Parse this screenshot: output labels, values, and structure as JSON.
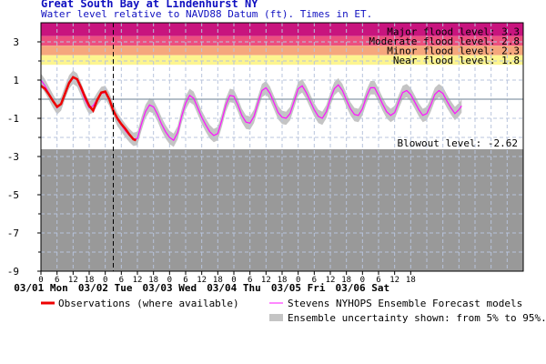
{
  "chart_data": {
    "type": "line",
    "title": "Great South Bay at Lindenhurst NY",
    "subtitle": "Water level relative to NAVD88 Datum (ft). Times in ET.",
    "xlabel": "",
    "ylabel": "",
    "x_unit": "hours since 03/01 Mon 00:00",
    "xlim": [
      0,
      180
    ],
    "ylim": [
      -9,
      4
    ],
    "y_ticks": [
      "-9",
      "-7",
      "-5",
      "-3",
      "-1",
      "1",
      "3"
    ],
    "y_tick_values": [
      -9,
      -7,
      -5,
      -3,
      -1,
      1,
      3
    ],
    "hour_ticks": [
      "0",
      "6",
      "12",
      "18",
      "0",
      "6",
      "12",
      "18",
      "0",
      "6",
      "12",
      "18",
      "0",
      "6",
      "12",
      "18",
      "0",
      "6",
      "12",
      "18",
      "0",
      "6",
      "12",
      "18"
    ],
    "day_labels": [
      "03/01 Mon",
      "03/02 Tue",
      "03/03 Wed",
      "03/04 Thu",
      "03/05 Fri",
      "03/06 Sat"
    ],
    "now_hour": 27,
    "grid": true,
    "flood_levels": [
      {
        "label": "Major flood level: 3.3",
        "value": 3.3,
        "color": "#c8147e"
      },
      {
        "label": "Moderate flood level: 2.8",
        "value": 2.8,
        "color": "#ec4f7f"
      },
      {
        "label": "Minor flood level: 2.3",
        "value": 2.3,
        "color": "#f5a77d"
      },
      {
        "label": "Near flood level: 1.8",
        "value": 1.8,
        "color": "#fdf58f"
      }
    ],
    "blowout": {
      "label": "Blowout level: -2.62",
      "value": -2.62,
      "color": "#999999"
    },
    "reference_line": 0.0,
    "series": [
      {
        "name": "Observations (where available)",
        "color": "#ee0000",
        "points": [
          [
            0,
            0.7
          ],
          [
            1.5,
            0.55
          ],
          [
            3,
            0.25
          ],
          [
            4.5,
            -0.1
          ],
          [
            6,
            -0.4
          ],
          [
            7.5,
            -0.25
          ],
          [
            9,
            0.3
          ],
          [
            10.5,
            0.85
          ],
          [
            12,
            1.15
          ],
          [
            13.5,
            1.05
          ],
          [
            15,
            0.6
          ],
          [
            16.5,
            0.1
          ],
          [
            18,
            -0.35
          ],
          [
            19.5,
            -0.6
          ],
          [
            21,
            -0.05
          ],
          [
            22.5,
            0.35
          ],
          [
            24,
            0.4
          ],
          [
            25.5,
            0.0
          ],
          [
            27,
            -0.6
          ],
          [
            28.5,
            -1.0
          ],
          [
            30,
            -1.3
          ],
          [
            31.5,
            -1.55
          ],
          [
            33,
            -1.85
          ],
          [
            34.5,
            -2.1
          ],
          [
            35.5,
            -2.15
          ]
        ]
      },
      {
        "name": "Stevens NYHOPS Ensemble Forecast models",
        "color": "#ff10ff",
        "points": [
          [
            0,
            1.0
          ],
          [
            1.5,
            0.7
          ],
          [
            3,
            0.3
          ],
          [
            4.5,
            -0.1
          ],
          [
            6,
            -0.45
          ],
          [
            7.5,
            -0.25
          ],
          [
            9,
            0.35
          ],
          [
            10.5,
            0.9
          ],
          [
            12,
            1.15
          ],
          [
            13.5,
            1.0
          ],
          [
            15,
            0.5
          ],
          [
            16.5,
            -0.05
          ],
          [
            18,
            -0.45
          ],
          [
            19.5,
            -0.35
          ],
          [
            21,
            0.0
          ],
          [
            22.5,
            0.3
          ],
          [
            24,
            0.35
          ],
          [
            25.5,
            0.0
          ],
          [
            27,
            -0.55
          ],
          [
            28.5,
            -1.05
          ],
          [
            30,
            -1.35
          ],
          [
            31.5,
            -1.65
          ],
          [
            33,
            -1.9
          ],
          [
            34.5,
            -2.1
          ],
          [
            36,
            -2.05
          ],
          [
            37.5,
            -1.3
          ],
          [
            39,
            -0.65
          ],
          [
            40.5,
            -0.3
          ],
          [
            42,
            -0.4
          ],
          [
            43.5,
            -0.8
          ],
          [
            45,
            -1.3
          ],
          [
            46.5,
            -1.7
          ],
          [
            48,
            -2.0
          ],
          [
            49.5,
            -2.15
          ],
          [
            51,
            -1.75
          ],
          [
            52.5,
            -0.9
          ],
          [
            54,
            -0.2
          ],
          [
            55.5,
            0.2
          ],
          [
            57,
            0.05
          ],
          [
            58.5,
            -0.45
          ],
          [
            60,
            -0.95
          ],
          [
            61.5,
            -1.35
          ],
          [
            63,
            -1.7
          ],
          [
            64.5,
            -1.9
          ],
          [
            66,
            -1.8
          ],
          [
            67.5,
            -1.1
          ],
          [
            69,
            -0.3
          ],
          [
            70.5,
            0.2
          ],
          [
            72,
            0.15
          ],
          [
            73.5,
            -0.3
          ],
          [
            75,
            -0.85
          ],
          [
            76.5,
            -1.2
          ],
          [
            78,
            -1.25
          ],
          [
            79.5,
            -0.9
          ],
          [
            81,
            -0.2
          ],
          [
            82.5,
            0.45
          ],
          [
            84,
            0.6
          ],
          [
            85.5,
            0.3
          ],
          [
            87,
            -0.2
          ],
          [
            88.5,
            -0.7
          ],
          [
            90,
            -0.95
          ],
          [
            91.5,
            -1.0
          ],
          [
            93,
            -0.75
          ],
          [
            94.5,
            -0.1
          ],
          [
            96,
            0.55
          ],
          [
            97.5,
            0.7
          ],
          [
            99,
            0.35
          ],
          [
            100.5,
            -0.1
          ],
          [
            102,
            -0.55
          ],
          [
            103.5,
            -0.9
          ],
          [
            105,
            -1.0
          ],
          [
            106.5,
            -0.65
          ],
          [
            108,
            0.0
          ],
          [
            109.5,
            0.55
          ],
          [
            111,
            0.75
          ],
          [
            112.5,
            0.45
          ],
          [
            114,
            -0.05
          ],
          [
            115.5,
            -0.5
          ],
          [
            117,
            -0.8
          ],
          [
            118.5,
            -0.85
          ],
          [
            120,
            -0.5
          ],
          [
            121.5,
            0.15
          ],
          [
            123,
            0.6
          ],
          [
            124.5,
            0.6
          ],
          [
            126,
            0.2
          ],
          [
            127.5,
            -0.25
          ],
          [
            129,
            -0.65
          ],
          [
            130.5,
            -0.85
          ],
          [
            132,
            -0.7
          ],
          [
            133.5,
            -0.15
          ],
          [
            135,
            0.35
          ],
          [
            136.5,
            0.45
          ],
          [
            138,
            0.25
          ],
          [
            139.5,
            -0.15
          ],
          [
            141,
            -0.55
          ],
          [
            142.5,
            -0.85
          ],
          [
            144,
            -0.75
          ],
          [
            145.5,
            -0.3
          ],
          [
            147,
            0.25
          ],
          [
            148.5,
            0.45
          ],
          [
            150,
            0.3
          ],
          [
            151.5,
            -0.1
          ],
          [
            153,
            -0.45
          ],
          [
            154.5,
            -0.75
          ],
          [
            156,
            -0.55
          ],
          [
            157,
            -0.35
          ]
        ]
      }
    ],
    "band": {
      "name": "Ensemble uncertainty shown: from 5% to 95%.",
      "color": "#c4c4c4",
      "half_width": 0.35
    }
  },
  "legend": {
    "observations": "Observations (where available)",
    "forecast": "Stevens NYHOPS Ensemble Forecast models",
    "uncertainty": "Ensemble uncertainty shown: from 5% to 95%."
  }
}
